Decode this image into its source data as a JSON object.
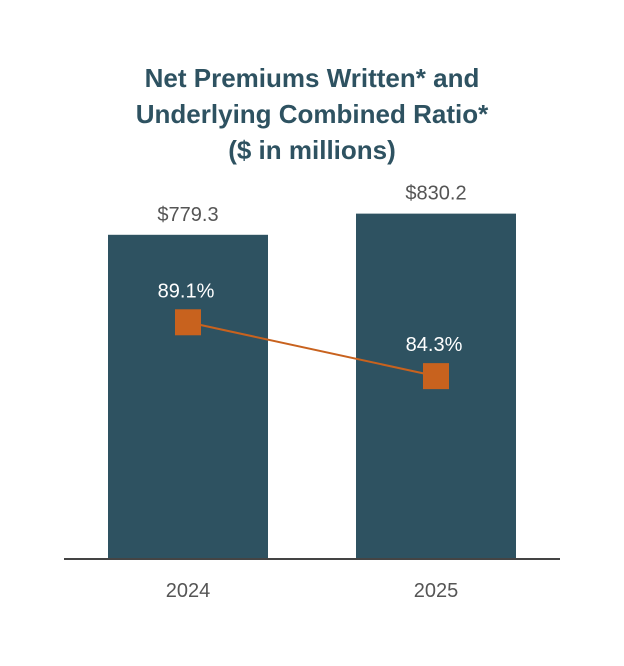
{
  "colors": {
    "bar": "#2e5261",
    "line": "#c8621e",
    "marker": "#c8621e",
    "title": "#2e5261",
    "axis_text": "#555555",
    "bar_label": "#555555",
    "line_label": "#ffffff",
    "baseline": "#444444"
  },
  "chart_data": {
    "type": "bar",
    "title_lines": [
      "Net Premiums Written* and",
      "Underlying Combined Ratio*",
      "($ in millions)"
    ],
    "categories": [
      "2024",
      "2025"
    ],
    "series": [
      {
        "name": "Net Premiums Written*",
        "type": "bar",
        "values": [
          779.3,
          830.2
        ],
        "value_labels": [
          "$779.3",
          "$830.2"
        ]
      },
      {
        "name": "Underlying Combined Ratio*",
        "type": "line",
        "values": [
          89.1,
          84.3
        ],
        "value_labels": [
          "89.1%",
          "84.3%"
        ]
      }
    ],
    "ylim": [
      0,
      850
    ],
    "y2lim": [
      68,
      100
    ],
    "grid": false,
    "legend": "none"
  }
}
